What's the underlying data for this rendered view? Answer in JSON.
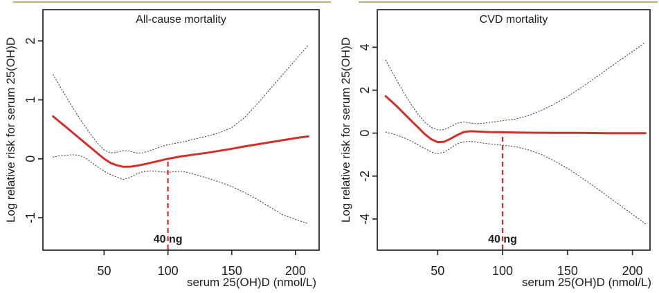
{
  "page": {
    "background": "#ffffff",
    "top_rule_color": "#b5b07a"
  },
  "chart_data": [
    {
      "type": "line",
      "name": "all-cause-mortality",
      "title": "All-cause mortality",
      "xlabel": "serum 25(OH)D (nmol/L)",
      "ylabel": "Log relative risk for serum 25(OH)D",
      "x_ticks": [
        50,
        100,
        150,
        200
      ],
      "y_ticks": [
        -1,
        0,
        1,
        2
      ],
      "xlim": [
        2,
        218.5
      ],
      "ylim": [
        -1.55,
        2.53
      ],
      "grid": false,
      "box_color": "#2d2d2d",
      "reference_line": {
        "x": 100,
        "to_y": 0,
        "label": "40 ng",
        "line_color": "#e62320",
        "label_color": "#ed1a5b",
        "style": "dashed"
      },
      "series": [
        {
          "name": "spline-estimate",
          "style": "solid",
          "color": "#d12f28",
          "points": [
            [
              10,
              0.72
            ],
            [
              15,
              0.63
            ],
            [
              20,
              0.54
            ],
            [
              25,
              0.45
            ],
            [
              30,
              0.36
            ],
            [
              35,
              0.27
            ],
            [
              40,
              0.18
            ],
            [
              45,
              0.09
            ],
            [
              50,
              0.0
            ],
            [
              55,
              -0.07
            ],
            [
              60,
              -0.11
            ],
            [
              65,
              -0.135
            ],
            [
              70,
              -0.135
            ],
            [
              75,
              -0.12
            ],
            [
              80,
              -0.1
            ],
            [
              85,
              -0.075
            ],
            [
              90,
              -0.05
            ],
            [
              95,
              -0.025
            ],
            [
              100,
              0.0
            ],
            [
              105,
              0.02
            ],
            [
              110,
              0.04
            ],
            [
              120,
              0.07
            ],
            [
              130,
              0.1
            ],
            [
              140,
              0.135
            ],
            [
              150,
              0.17
            ],
            [
              160,
              0.21
            ],
            [
              170,
              0.245
            ],
            [
              180,
              0.28
            ],
            [
              190,
              0.315
            ],
            [
              200,
              0.35
            ],
            [
              210,
              0.38
            ]
          ]
        },
        {
          "name": "upper-confidence-limit",
          "style": "dotted",
          "color": "#474747",
          "points": [
            [
              10,
              1.43
            ],
            [
              15,
              1.24
            ],
            [
              20,
              1.06
            ],
            [
              25,
              0.88
            ],
            [
              30,
              0.71
            ],
            [
              35,
              0.55
            ],
            [
              40,
              0.4
            ],
            [
              45,
              0.26
            ],
            [
              50,
              0.15
            ],
            [
              55,
              0.1
            ],
            [
              60,
              0.11
            ],
            [
              65,
              0.14
            ],
            [
              70,
              0.13
            ],
            [
              75,
              0.1
            ],
            [
              80,
              0.1
            ],
            [
              85,
              0.13
            ],
            [
              90,
              0.17
            ],
            [
              95,
              0.21
            ],
            [
              100,
              0.24
            ],
            [
              105,
              0.26
            ],
            [
              110,
              0.28
            ],
            [
              115,
              0.3
            ],
            [
              120,
              0.33
            ],
            [
              130,
              0.38
            ],
            [
              140,
              0.44
            ],
            [
              150,
              0.53
            ],
            [
              160,
              0.7
            ],
            [
              170,
              0.93
            ],
            [
              180,
              1.18
            ],
            [
              190,
              1.43
            ],
            [
              200,
              1.68
            ],
            [
              210,
              1.93
            ]
          ]
        },
        {
          "name": "lower-confidence-limit",
          "style": "dotted",
          "color": "#474747",
          "points": [
            [
              10,
              0.03
            ],
            [
              15,
              0.05
            ],
            [
              20,
              0.06
            ],
            [
              25,
              0.07
            ],
            [
              30,
              0.06
            ],
            [
              35,
              0.02
            ],
            [
              40,
              -0.06
            ],
            [
              45,
              -0.14
            ],
            [
              50,
              -0.21
            ],
            [
              55,
              -0.27
            ],
            [
              60,
              -0.31
            ],
            [
              65,
              -0.35
            ],
            [
              70,
              -0.32
            ],
            [
              75,
              -0.26
            ],
            [
              80,
              -0.22
            ],
            [
              85,
              -0.21
            ],
            [
              90,
              -0.21
            ],
            [
              95,
              -0.22
            ],
            [
              100,
              -0.23
            ],
            [
              105,
              -0.22
            ],
            [
              110,
              -0.21
            ],
            [
              115,
              -0.23
            ],
            [
              120,
              -0.26
            ],
            [
              130,
              -0.32
            ],
            [
              140,
              -0.39
            ],
            [
              150,
              -0.47
            ],
            [
              160,
              -0.57
            ],
            [
              170,
              -0.69
            ],
            [
              180,
              -0.82
            ],
            [
              190,
              -0.95
            ],
            [
              200,
              -1.03
            ],
            [
              210,
              -1.1
            ]
          ]
        }
      ]
    },
    {
      "type": "line",
      "name": "cvd-mortality",
      "title": "CVD mortality",
      "xlabel": "serum 25(OH)D (nmol/L)",
      "ylabel": "Log relative risk for serum 25(OH)D",
      "x_ticks": [
        50,
        100,
        150,
        200
      ],
      "y_ticks": [
        -4,
        -2,
        0,
        2,
        4
      ],
      "xlim": [
        3.5,
        213.5
      ],
      "ylim": [
        -5.45,
        5.75
      ],
      "grid": false,
      "box_color": "#2d2d2d",
      "reference_line": {
        "x": 100,
        "to_y": 0,
        "label": "40 ng",
        "line_color": "#e62320",
        "label_color": "#ed1a5b",
        "style": "dashed"
      },
      "series": [
        {
          "name": "spline-estimate",
          "style": "solid",
          "color": "#d12f28",
          "points": [
            [
              10,
              1.72
            ],
            [
              15,
              1.45
            ],
            [
              20,
              1.16
            ],
            [
              25,
              0.86
            ],
            [
              30,
              0.56
            ],
            [
              35,
              0.26
            ],
            [
              40,
              -0.04
            ],
            [
              45,
              -0.28
            ],
            [
              50,
              -0.42
            ],
            [
              55,
              -0.4
            ],
            [
              60,
              -0.26
            ],
            [
              65,
              -0.09
            ],
            [
              70,
              0.05
            ],
            [
              75,
              0.09
            ],
            [
              80,
              0.08
            ],
            [
              90,
              0.05
            ],
            [
              100,
              0.04
            ],
            [
              110,
              0.03
            ],
            [
              120,
              0.02
            ],
            [
              140,
              0.01
            ],
            [
              160,
              0.01
            ],
            [
              180,
              0.0
            ],
            [
              210,
              0.0
            ]
          ]
        },
        {
          "name": "upper-confidence-limit",
          "style": "dotted",
          "color": "#474747",
          "points": [
            [
              10,
              3.4
            ],
            [
              15,
              2.85
            ],
            [
              20,
              2.3
            ],
            [
              25,
              1.78
            ],
            [
              30,
              1.3
            ],
            [
              35,
              0.87
            ],
            [
              40,
              0.52
            ],
            [
              45,
              0.27
            ],
            [
              50,
              0.15
            ],
            [
              55,
              0.16
            ],
            [
              60,
              0.3
            ],
            [
              65,
              0.46
            ],
            [
              70,
              0.52
            ],
            [
              75,
              0.47
            ],
            [
              80,
              0.44
            ],
            [
              85,
              0.46
            ],
            [
              90,
              0.5
            ],
            [
              95,
              0.54
            ],
            [
              100,
              0.58
            ],
            [
              110,
              0.66
            ],
            [
              120,
              0.82
            ],
            [
              130,
              1.06
            ],
            [
              140,
              1.36
            ],
            [
              150,
              1.7
            ],
            [
              160,
              2.1
            ],
            [
              170,
              2.52
            ],
            [
              180,
              2.95
            ],
            [
              190,
              3.38
            ],
            [
              200,
              3.8
            ],
            [
              210,
              4.22
            ]
          ]
        },
        {
          "name": "lower-confidence-limit",
          "style": "dotted",
          "color": "#474747",
          "points": [
            [
              10,
              0.05
            ],
            [
              15,
              -0.02
            ],
            [
              20,
              -0.12
            ],
            [
              25,
              -0.24
            ],
            [
              30,
              -0.38
            ],
            [
              35,
              -0.55
            ],
            [
              40,
              -0.72
            ],
            [
              45,
              -0.87
            ],
            [
              50,
              -0.96
            ],
            [
              55,
              -0.89
            ],
            [
              60,
              -0.7
            ],
            [
              65,
              -0.5
            ],
            [
              70,
              -0.41
            ],
            [
              75,
              -0.38
            ],
            [
              80,
              -0.42
            ],
            [
              85,
              -0.46
            ],
            [
              90,
              -0.5
            ],
            [
              95,
              -0.53
            ],
            [
              100,
              -0.56
            ],
            [
              110,
              -0.63
            ],
            [
              120,
              -0.78
            ],
            [
              130,
              -1.0
            ],
            [
              140,
              -1.3
            ],
            [
              150,
              -1.64
            ],
            [
              160,
              -2.04
            ],
            [
              170,
              -2.46
            ],
            [
              180,
              -2.9
            ],
            [
              190,
              -3.34
            ],
            [
              200,
              -3.78
            ],
            [
              210,
              -4.22
            ]
          ]
        }
      ]
    }
  ]
}
